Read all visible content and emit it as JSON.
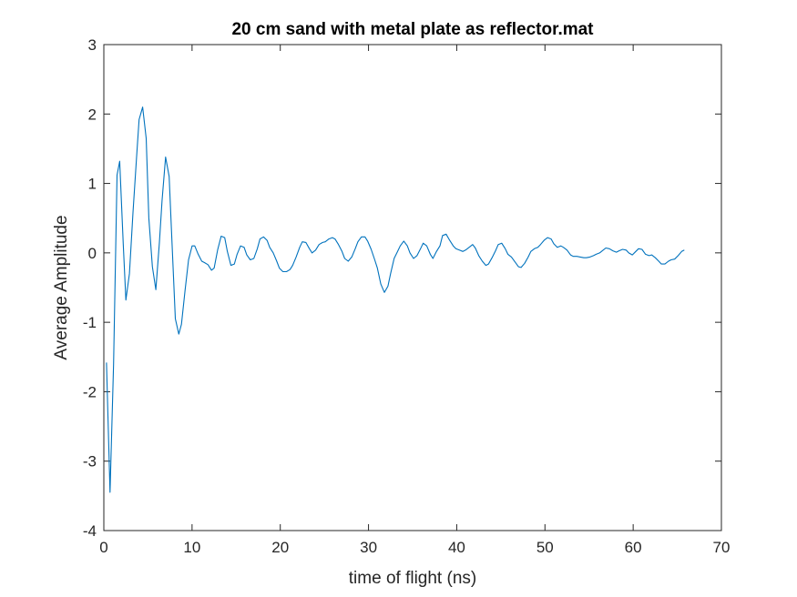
{
  "chart_data": {
    "type": "line",
    "title": "20 cm sand with metal plate as reflector.mat",
    "xlabel": "time of flight (ns)",
    "ylabel": "Average Amplitude",
    "xlim": [
      0,
      70
    ],
    "ylim": [
      -4,
      3
    ],
    "xticks": [
      0,
      10,
      20,
      30,
      40,
      50,
      60,
      70
    ],
    "yticks": [
      -4,
      -3,
      -2,
      -1,
      0,
      1,
      2,
      3
    ],
    "grid": false,
    "legend": "none",
    "line_color": "#0072bd",
    "series": [
      {
        "x": [
          0.3,
          0.7,
          1.1,
          1.5,
          1.8,
          2.2,
          2.5,
          2.9,
          3.3,
          3.7,
          4.0,
          4.4,
          4.8,
          5.1,
          5.5,
          5.9,
          6.3,
          6.6,
          7.0,
          7.4,
          7.7,
          8.1,
          8.5,
          8.8,
          9.2,
          9.6,
          10.0,
          10.3,
          10.7,
          11.1,
          11.4,
          11.8,
          12.2,
          12.5,
          12.9,
          13.3,
          13.7,
          14.0,
          14.4,
          14.8,
          15.1,
          15.5,
          15.9,
          16.2,
          16.6,
          17.0,
          17.4,
          17.7,
          18.1,
          18.5,
          18.8,
          19.2,
          19.6,
          19.9,
          20.3,
          20.7,
          21.1,
          21.4,
          21.8,
          22.2,
          22.5,
          22.9,
          23.3,
          23.6,
          24.0,
          24.4,
          24.8,
          25.1,
          25.5,
          25.9,
          26.2,
          26.6,
          27.0,
          27.3,
          27.7,
          28.1,
          28.5,
          28.8,
          29.2,
          29.6,
          29.9,
          30.3,
          30.7,
          31.0,
          31.4,
          31.8,
          32.2,
          32.5,
          32.9,
          33.3,
          33.6,
          34.0,
          34.4,
          34.7,
          35.1,
          35.5,
          35.9,
          36.2,
          36.6,
          37.0,
          37.3,
          37.7,
          38.1,
          38.4,
          38.8,
          39.2,
          39.6,
          39.9,
          40.3,
          40.7,
          41.0,
          41.4,
          41.8,
          42.1,
          42.5,
          42.9,
          43.3,
          43.6,
          44.0,
          44.4,
          44.7,
          45.1,
          45.5,
          45.8,
          46.2,
          46.6,
          47.0,
          47.3,
          47.7,
          48.1,
          48.4,
          48.8,
          49.2,
          49.5,
          49.9,
          50.3,
          50.7,
          51.0,
          51.4,
          51.8,
          52.1,
          52.5,
          52.9,
          53.2,
          53.6,
          54.0,
          54.4,
          54.7,
          55.1,
          55.5,
          55.8,
          56.2,
          56.6,
          56.9,
          57.3,
          57.7,
          58.1,
          58.4,
          58.8,
          59.2,
          59.5,
          59.9,
          60.3,
          60.6,
          61.0,
          61.4,
          61.8,
          62.1,
          62.5,
          62.9,
          63.2,
          63.6,
          64.0,
          64.3,
          64.7,
          65.1,
          65.5,
          65.8
        ],
        "values": [
          -1.58,
          -3.45,
          -1.6,
          1.12,
          1.32,
          0.13,
          -0.68,
          -0.3,
          0.58,
          1.35,
          1.92,
          2.1,
          1.65,
          0.5,
          -0.2,
          -0.53,
          0.15,
          0.75,
          1.38,
          1.1,
          0.22,
          -0.95,
          -1.17,
          -1.03,
          -0.55,
          -0.1,
          0.1,
          0.1,
          -0.02,
          -0.12,
          -0.14,
          -0.17,
          -0.25,
          -0.22,
          0.04,
          0.24,
          0.22,
          0.02,
          -0.18,
          -0.16,
          -0.02,
          0.1,
          0.08,
          -0.03,
          -0.1,
          -0.08,
          0.06,
          0.2,
          0.23,
          0.18,
          0.08,
          0.0,
          -0.12,
          -0.22,
          -0.27,
          -0.27,
          -0.24,
          -0.18,
          -0.06,
          0.08,
          0.16,
          0.15,
          0.06,
          0.0,
          0.04,
          0.12,
          0.15,
          0.16,
          0.2,
          0.22,
          0.2,
          0.12,
          0.02,
          -0.08,
          -0.12,
          -0.06,
          0.06,
          0.16,
          0.23,
          0.23,
          0.17,
          0.05,
          -0.1,
          -0.22,
          -0.45,
          -0.57,
          -0.48,
          -0.3,
          -0.08,
          0.02,
          0.1,
          0.17,
          0.1,
          0.0,
          -0.08,
          -0.04,
          0.06,
          0.14,
          0.1,
          -0.02,
          -0.08,
          0.02,
          0.1,
          0.25,
          0.27,
          0.18,
          0.1,
          0.06,
          0.04,
          0.02,
          0.04,
          0.08,
          0.12,
          0.07,
          -0.04,
          -0.12,
          -0.18,
          -0.16,
          -0.07,
          0.03,
          0.12,
          0.14,
          0.06,
          -0.02,
          -0.06,
          -0.13,
          -0.2,
          -0.21,
          -0.15,
          -0.06,
          0.02,
          0.06,
          0.08,
          0.12,
          0.18,
          0.22,
          0.2,
          0.13,
          0.08,
          0.1,
          0.08,
          0.04,
          -0.03,
          -0.05,
          -0.05,
          -0.06,
          -0.07,
          -0.07,
          -0.06,
          -0.04,
          -0.02,
          0.0,
          0.04,
          0.07,
          0.06,
          0.03,
          0.01,
          0.03,
          0.05,
          0.04,
          0.0,
          -0.03,
          0.02,
          0.06,
          0.05,
          -0.02,
          -0.04,
          -0.03,
          -0.07,
          -0.12,
          -0.16,
          -0.16,
          -0.12,
          -0.1,
          -0.09,
          -0.04,
          0.02,
          0.04
        ]
      }
    ]
  }
}
